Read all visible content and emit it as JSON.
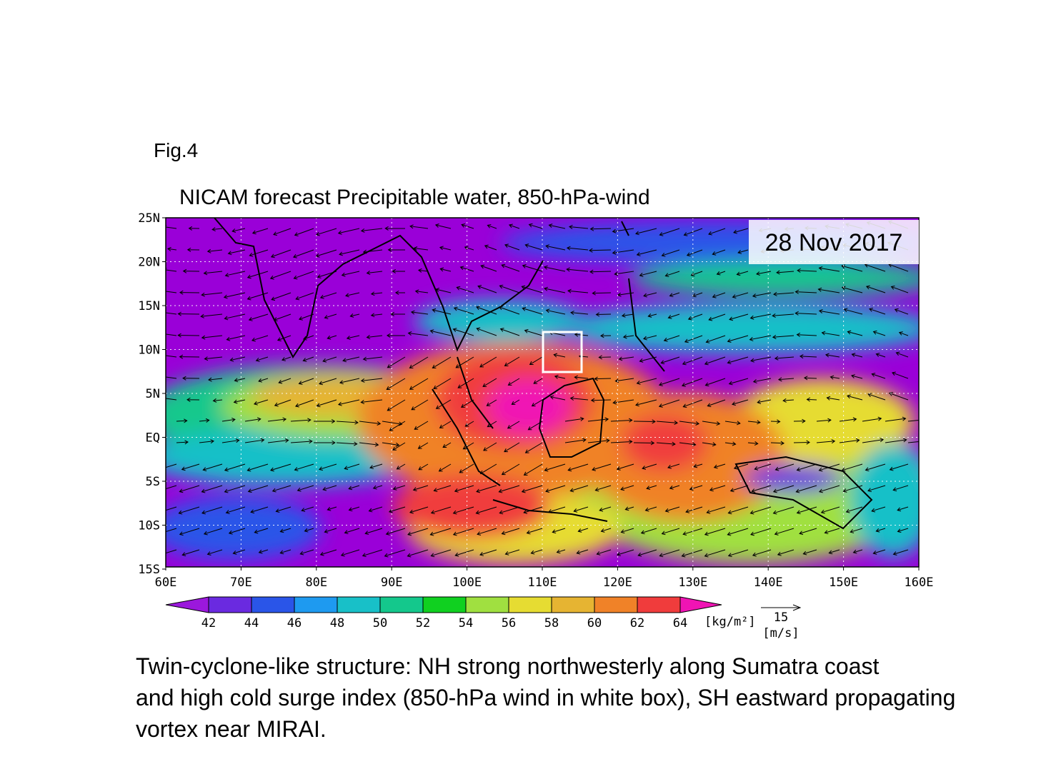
{
  "fig_label": "Fig.4",
  "title": "NICAM forecast Precipitable water, 850-hPa-wind",
  "date_label": "28 Nov 2017",
  "map": {
    "lat_labels": [
      "25N",
      "20N",
      "15N",
      "10N",
      "5N",
      "EQ",
      "5S",
      "10S",
      "15S"
    ],
    "lon_labels": [
      "60E",
      "70E",
      "80E",
      "90E",
      "100E",
      "110E",
      "120E",
      "130E",
      "140E",
      "150E",
      "160E"
    ]
  },
  "colorbar": {
    "labels": [
      42,
      44,
      46,
      48,
      50,
      52,
      54,
      56,
      58,
      60,
      62,
      64
    ],
    "colors": [
      "#9b18dc",
      "#6a2ae0",
      "#2a55e8",
      "#1e9af0",
      "#18c0c8",
      "#14c88c",
      "#10d020",
      "#a0e040",
      "#e6dc32",
      "#e6b432",
      "#f08228",
      "#f03c3c",
      "#f014b4"
    ],
    "unit": "[kg/m²]"
  },
  "vector_key": {
    "value": "15",
    "unit": "[m/s]"
  },
  "caption": [
    "Twin-cyclone-like structure: NH strong northwesterly along Sumatra coast",
    "and high cold surge index (850-hPa wind in white box), SH eastward propagating",
    "vortex near MIRAI."
  ]
}
